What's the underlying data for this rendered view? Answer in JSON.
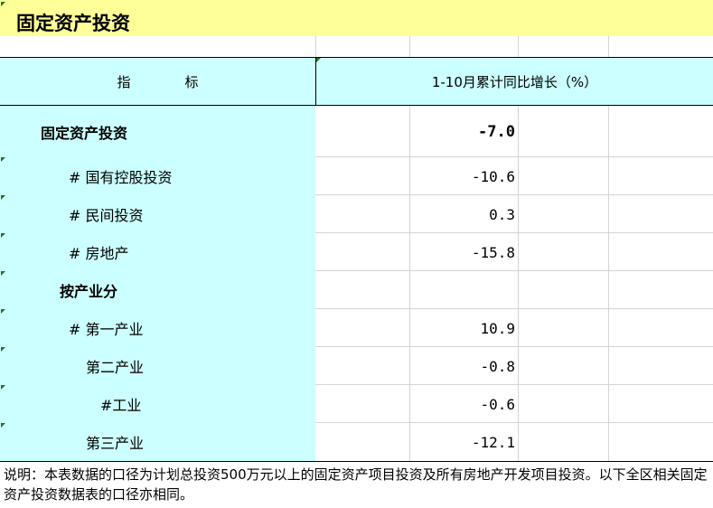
{
  "title": "固定资产投资",
  "header": {
    "indicator": "指　　　　标",
    "growth": "1-10月累计同比增长（%）"
  },
  "rows": [
    {
      "label": "固定资产投资",
      "value": "-7.0",
      "bold": true
    },
    {
      "label": "# 国有控股投资",
      "value": "-10.6"
    },
    {
      "label": "# 民间投资",
      "value": "0.3"
    },
    {
      "label": "# 房地产",
      "value": "-15.8"
    },
    {
      "label": "按产业分",
      "value": "",
      "bold": true
    },
    {
      "label": "# 第一产业",
      "value": "10.9"
    },
    {
      "label": "第二产业",
      "value": "-0.8"
    },
    {
      "label": "#工业",
      "value": "-0.6"
    },
    {
      "label": "第三产业",
      "value": "-12.1"
    }
  ],
  "note": "说明：本表数据的口径为计划总投资500万元以上的固定资产项目投资及所有房地产开发项目投资。以下全区相关固定资产投资数据表的口径亦相同。",
  "colors": {
    "title_bg": "#ffff99",
    "label_bg": "#ccffff"
  }
}
